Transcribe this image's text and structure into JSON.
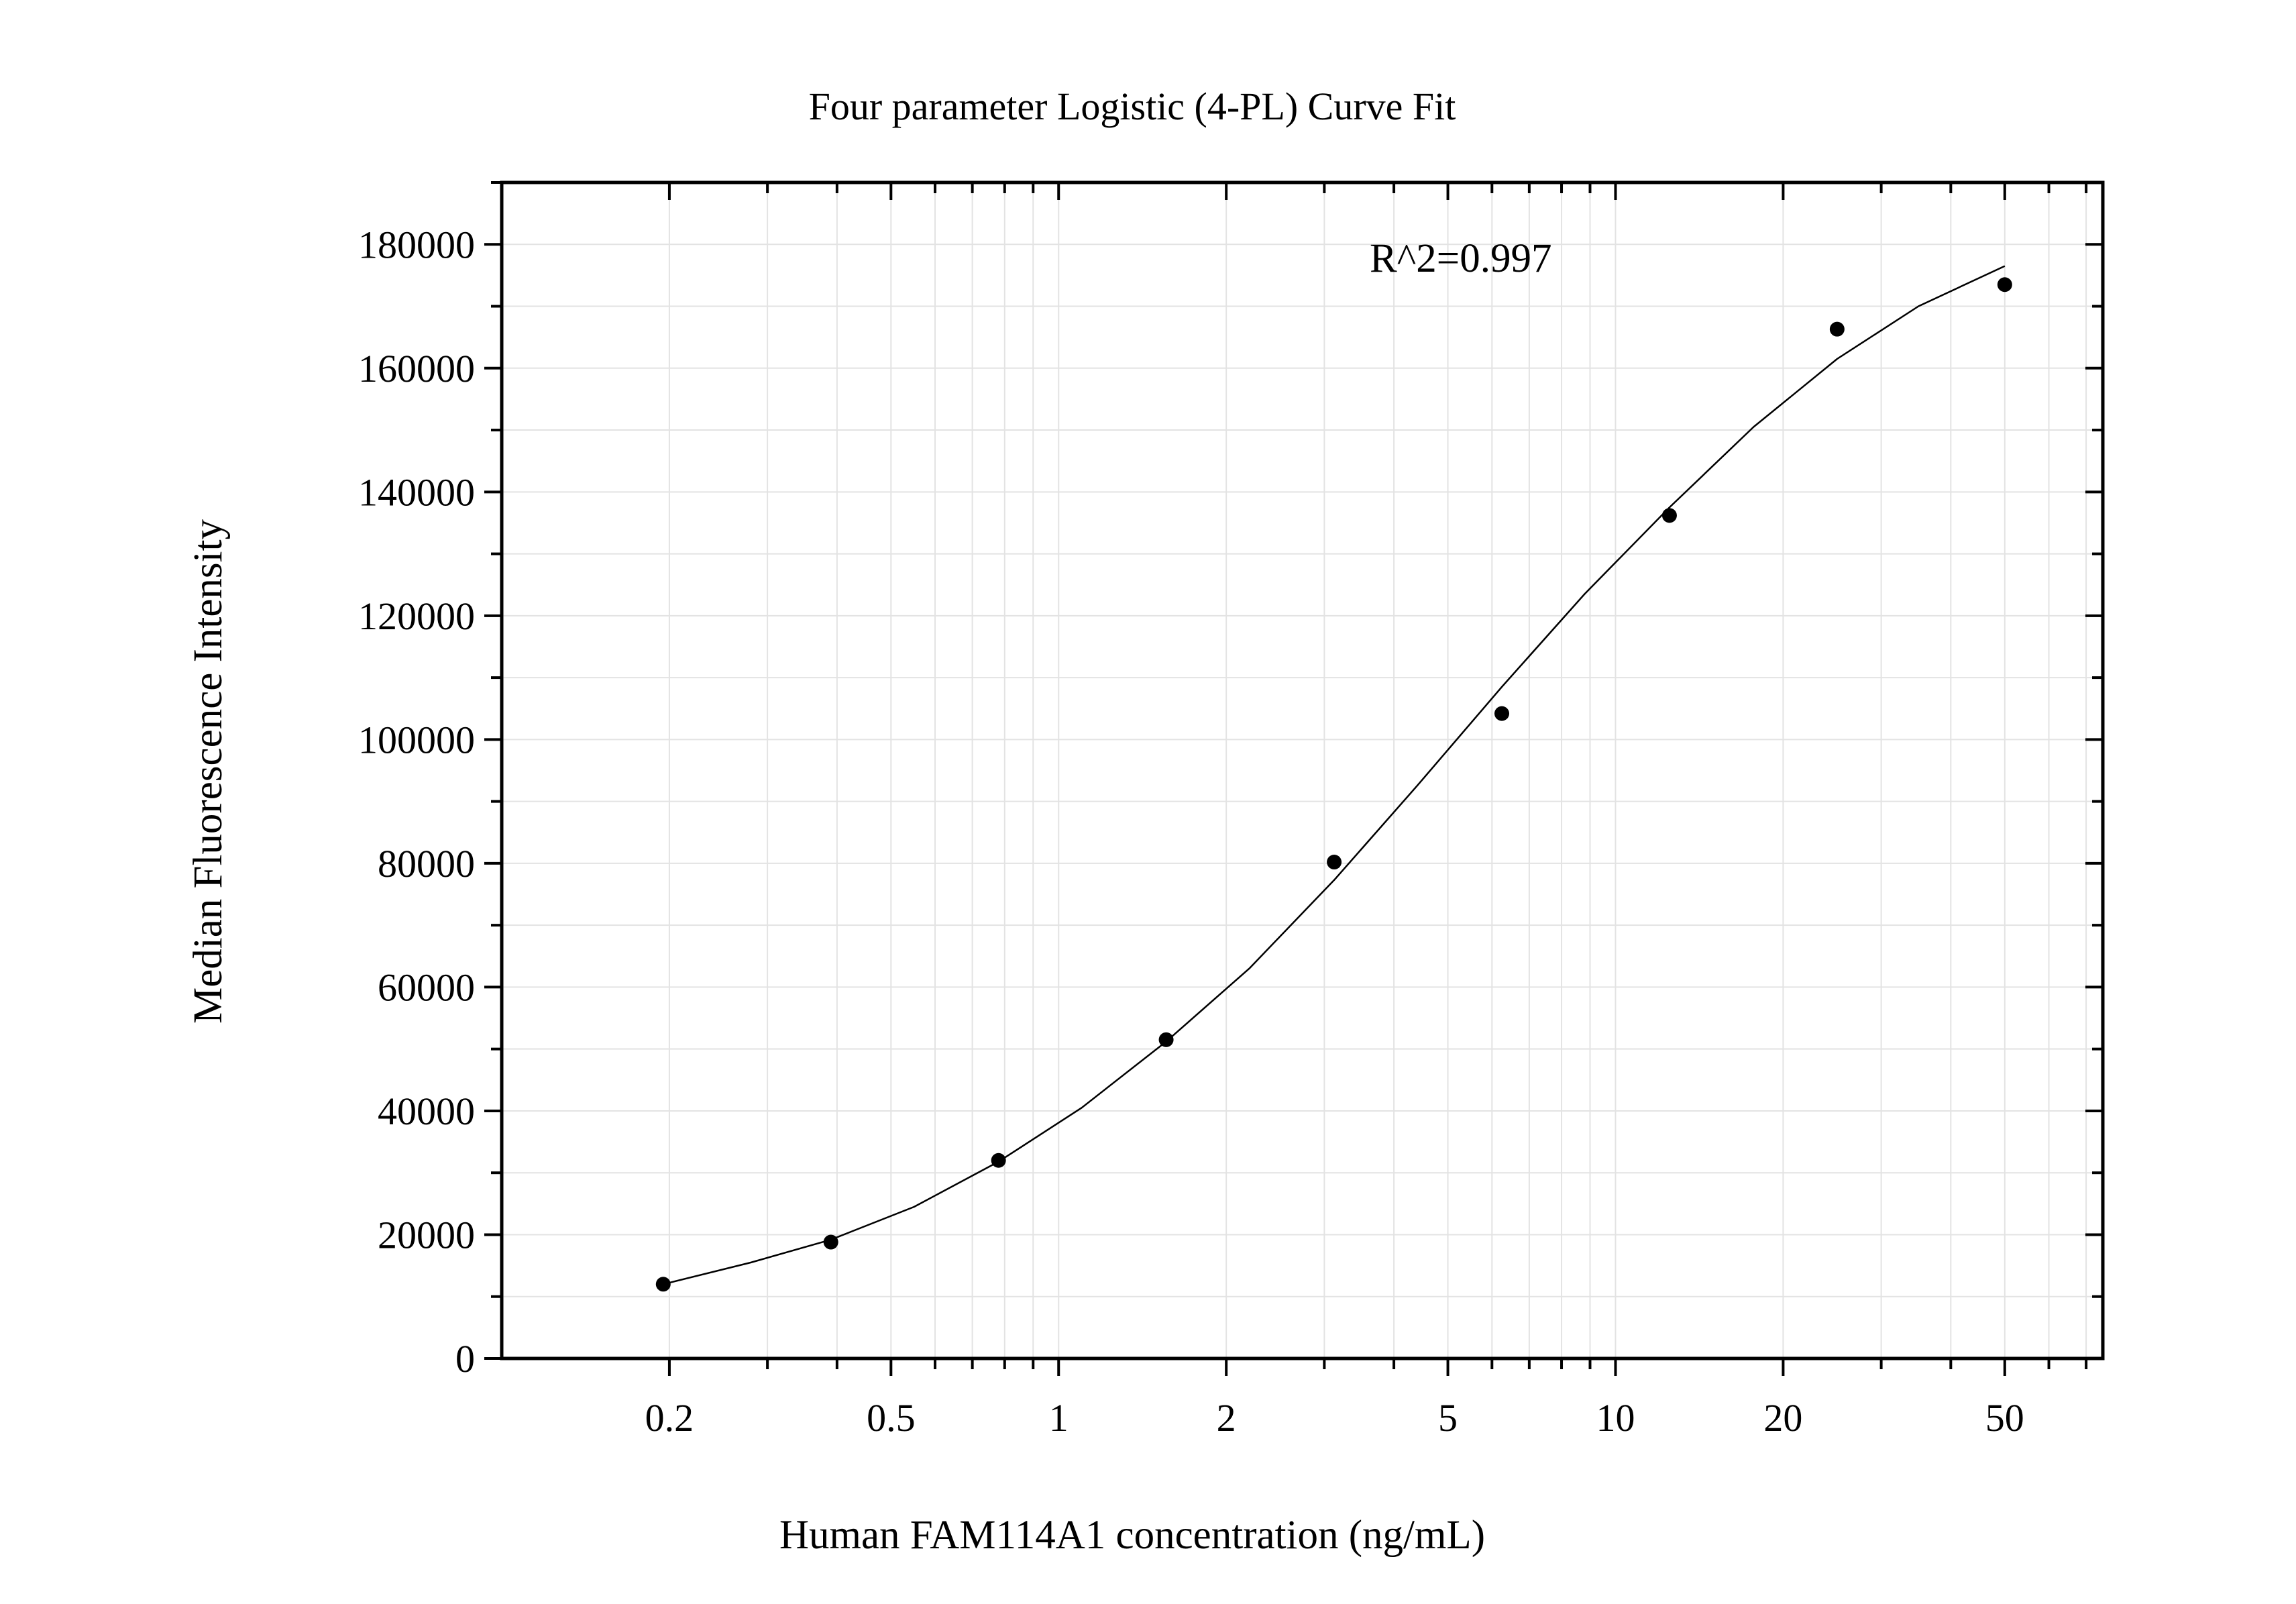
{
  "chart_data": {
    "type": "scatter",
    "title": "Four parameter Logistic (4-PL) Curve Fit",
    "xlabel": "Human FAM114A1 concentration (ng/mL)",
    "ylabel": "Median Fluorescence Intensity",
    "x_scale": "log",
    "xlim": [
      0.1,
      75
    ],
    "ylim": [
      0,
      190000
    ],
    "grid": true,
    "x_ticks": [
      0.2,
      0.5,
      1,
      2,
      5,
      10,
      20,
      50
    ],
    "x_tick_labels": [
      "0.2",
      "0.5",
      "1",
      "2",
      "5",
      "10",
      "20",
      "50"
    ],
    "y_ticks": [
      0,
      20000,
      40000,
      60000,
      80000,
      100000,
      120000,
      140000,
      160000,
      180000
    ],
    "y_tick_labels": [
      "0",
      "20000",
      "40000",
      "60000",
      "80000",
      "100000",
      "120000",
      "140000",
      "160000",
      "180000"
    ],
    "annotation": "R^2=0.997",
    "series": [
      {
        "type": "scatter",
        "x": [
          0.195,
          0.39,
          0.78,
          1.56,
          3.125,
          6.25,
          12.5,
          25,
          50
        ],
        "y": [
          12000,
          18800,
          32000,
          51500,
          80200,
          104200,
          136200,
          166300,
          173500
        ]
      },
      {
        "type": "line",
        "x": [
          0.195,
          0.28,
          0.39,
          0.55,
          0.78,
          1.1,
          1.56,
          2.2,
          3.125,
          4.4,
          6.25,
          8.8,
          12.5,
          17.7,
          25,
          35,
          50
        ],
        "y": [
          12000,
          15500,
          19200,
          24500,
          31800,
          40500,
          51200,
          63000,
          77300,
          92500,
          108500,
          123500,
          137500,
          150500,
          161500,
          170000,
          176500
        ]
      }
    ]
  }
}
